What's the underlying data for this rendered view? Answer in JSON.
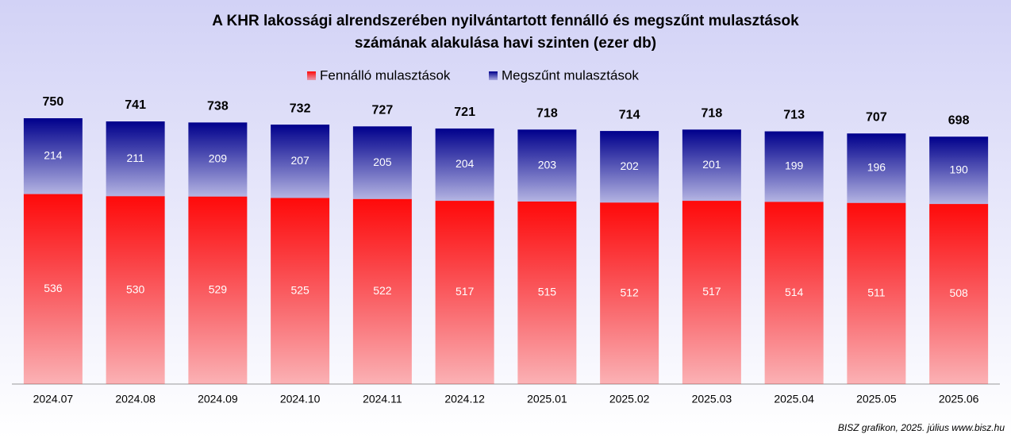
{
  "chart_data": {
    "type": "stacked-bar",
    "title": [
      "A KHR lakossági alrendszerében nyilvántartott fennálló és megszűnt mulasztások",
      "számának alakulása havi szinten (ezer db)"
    ],
    "categories": [
      "2024.07",
      "2024.08",
      "2024.09",
      "2024.10",
      "2024.11",
      "2024.12",
      "2025.01",
      "2025.02",
      "2025.03",
      "2025.04",
      "2025.05",
      "2025.06"
    ],
    "series": [
      {
        "name": "Fennálló mulasztások",
        "color": "#ff0a0a",
        "values": [
          536,
          530,
          529,
          525,
          522,
          517,
          515,
          512,
          517,
          514,
          511,
          508
        ]
      },
      {
        "name": "Megszűnt mulasztások",
        "color": "#00008c",
        "values": [
          214,
          211,
          209,
          207,
          205,
          204,
          203,
          202,
          201,
          199,
          196,
          190
        ]
      }
    ],
    "totals": [
      750,
      741,
      738,
      732,
      727,
      721,
      718,
      714,
      718,
      713,
      707,
      698
    ],
    "legend": "top",
    "source": "BISZ grafikon, 2025. július www.bisz.hu"
  }
}
